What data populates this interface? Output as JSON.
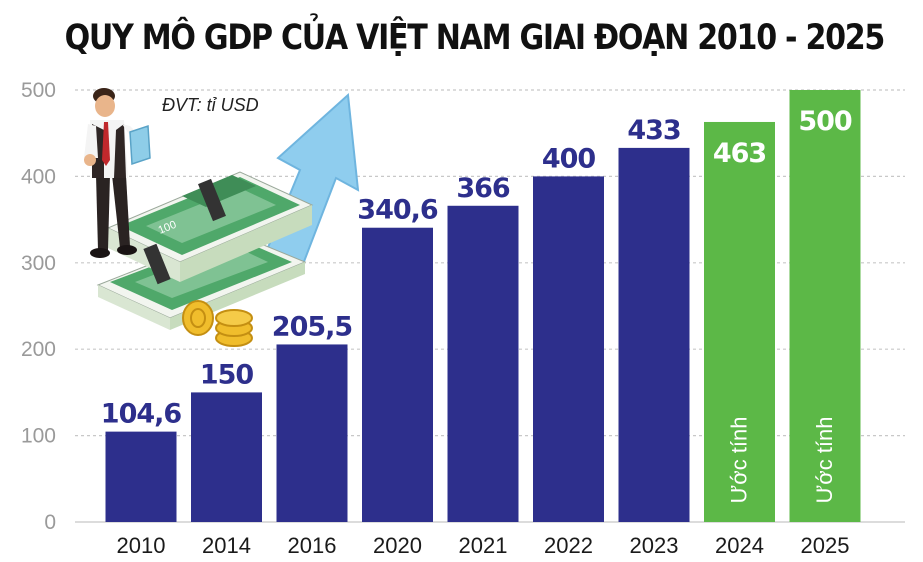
{
  "chart_data": {
    "type": "bar",
    "title": "QUY MÔ GDP CỦA VIỆT NAM GIAI ĐOẠN 2010 - 2025",
    "unit_note": "ĐVT: tỉ USD",
    "categories": [
      "2010",
      "2014",
      "2016",
      "2020",
      "2021",
      "2022",
      "2023",
      "2024",
      "2025"
    ],
    "values": [
      104.6,
      150,
      205.5,
      340.6,
      366,
      400,
      433,
      463,
      500
    ],
    "value_labels": [
      "104,6",
      "150",
      "205,5",
      "340,6",
      "366",
      "400",
      "433",
      "463",
      "500"
    ],
    "estimated": [
      false,
      false,
      false,
      false,
      false,
      false,
      false,
      true,
      true
    ],
    "estimate_label": "Ước tính",
    "ylim": [
      0,
      500
    ],
    "yticks": [
      0,
      100,
      200,
      300,
      400,
      500
    ],
    "grid": true,
    "colors": {
      "actual": "#2d2f8c",
      "estimated": "#5cb847",
      "actual_label": "#2d2f8c",
      "estimated_label": "#ffffff",
      "grid": "#c8c8c8"
    }
  },
  "illustration": {
    "banknote_text": "100"
  }
}
